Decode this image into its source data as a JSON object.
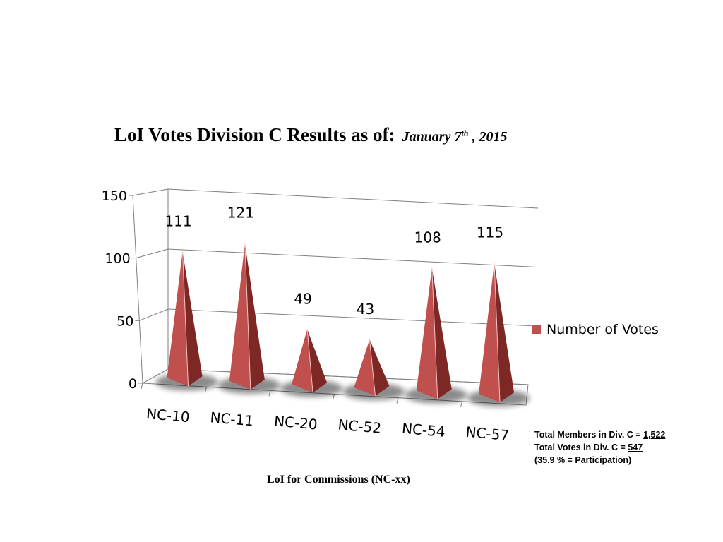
{
  "title": {
    "main": "LoI Votes Division C Results as of:",
    "date_prefix": "January 7",
    "date_sup": "th",
    "date_suffix": " , 2015"
  },
  "x_axis_title": "LoI for Commissions (NC-xx)",
  "legend_label": "Number of Votes",
  "notes": {
    "members_label": "Total Members in Div. C = ",
    "members_value": "1,522",
    "votes_label": "Total Votes in Div. C = ",
    "votes_value": "547",
    "participation": "(35.9 % = Participation)"
  },
  "colors": {
    "series": "#c0504d",
    "series_dark": "#7e2826",
    "series_mid": "#a83b38",
    "grid": "#7f7f7f"
  },
  "chart_data": {
    "type": "bar",
    "bar_shape": "3d-pyramid",
    "categories": [
      "NC-10",
      "NC-11",
      "NC-20",
      "NC-52",
      "NC-54",
      "NC-57"
    ],
    "series": [
      {
        "name": "Number of Votes",
        "values": [
          111,
          121,
          49,
          43,
          108,
          115
        ]
      }
    ],
    "data_labels": [
      "111",
      "121",
      "49",
      "43",
      "108",
      "115"
    ],
    "y_ticks": [
      "0",
      "50",
      "100",
      "150"
    ],
    "ylim": [
      0,
      150
    ],
    "xlabel": "LoI for Commissions (NC-xx)",
    "ylabel": "",
    "title": "LoI Votes Division C Results as of: January 7th , 2015",
    "grid": true,
    "legend": "right"
  }
}
